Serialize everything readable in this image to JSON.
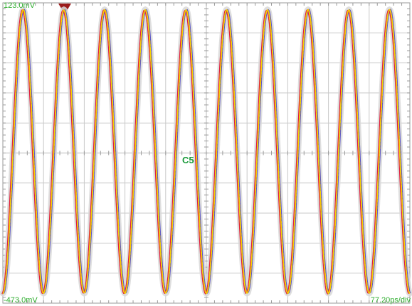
{
  "scope": {
    "top_level_label": "123.0mV",
    "bottom_level_label": "-473.0mV",
    "timebase_label": "77.20ps/div",
    "center_marker_label": "C5",
    "label_color": "#2fae2f",
    "center_marker_color": "#1a9a3a",
    "trigger_marker_color": "#9b1b1b"
  },
  "chart_data": {
    "type": "line",
    "title": "",
    "xlabel": "",
    "ylabel": "",
    "x_unit": "ps",
    "y_unit": "mV",
    "x_divisions": 10,
    "y_divisions": 10,
    "x_per_div": 77.2,
    "xlim": [
      0,
      772
    ],
    "ylim": [
      -473.0,
      123.0
    ],
    "grid": true,
    "waveform": {
      "shape": "sine",
      "cycles": 10,
      "period_ps": 77.2,
      "phase_deg": 180,
      "peak_mV": 109,
      "trough_mV": -453,
      "offset_mV": -172
    },
    "series": [
      {
        "color": "#e01f3d"
      },
      {
        "color": "#f4d000"
      },
      {
        "color": "#5b56c8"
      }
    ]
  }
}
